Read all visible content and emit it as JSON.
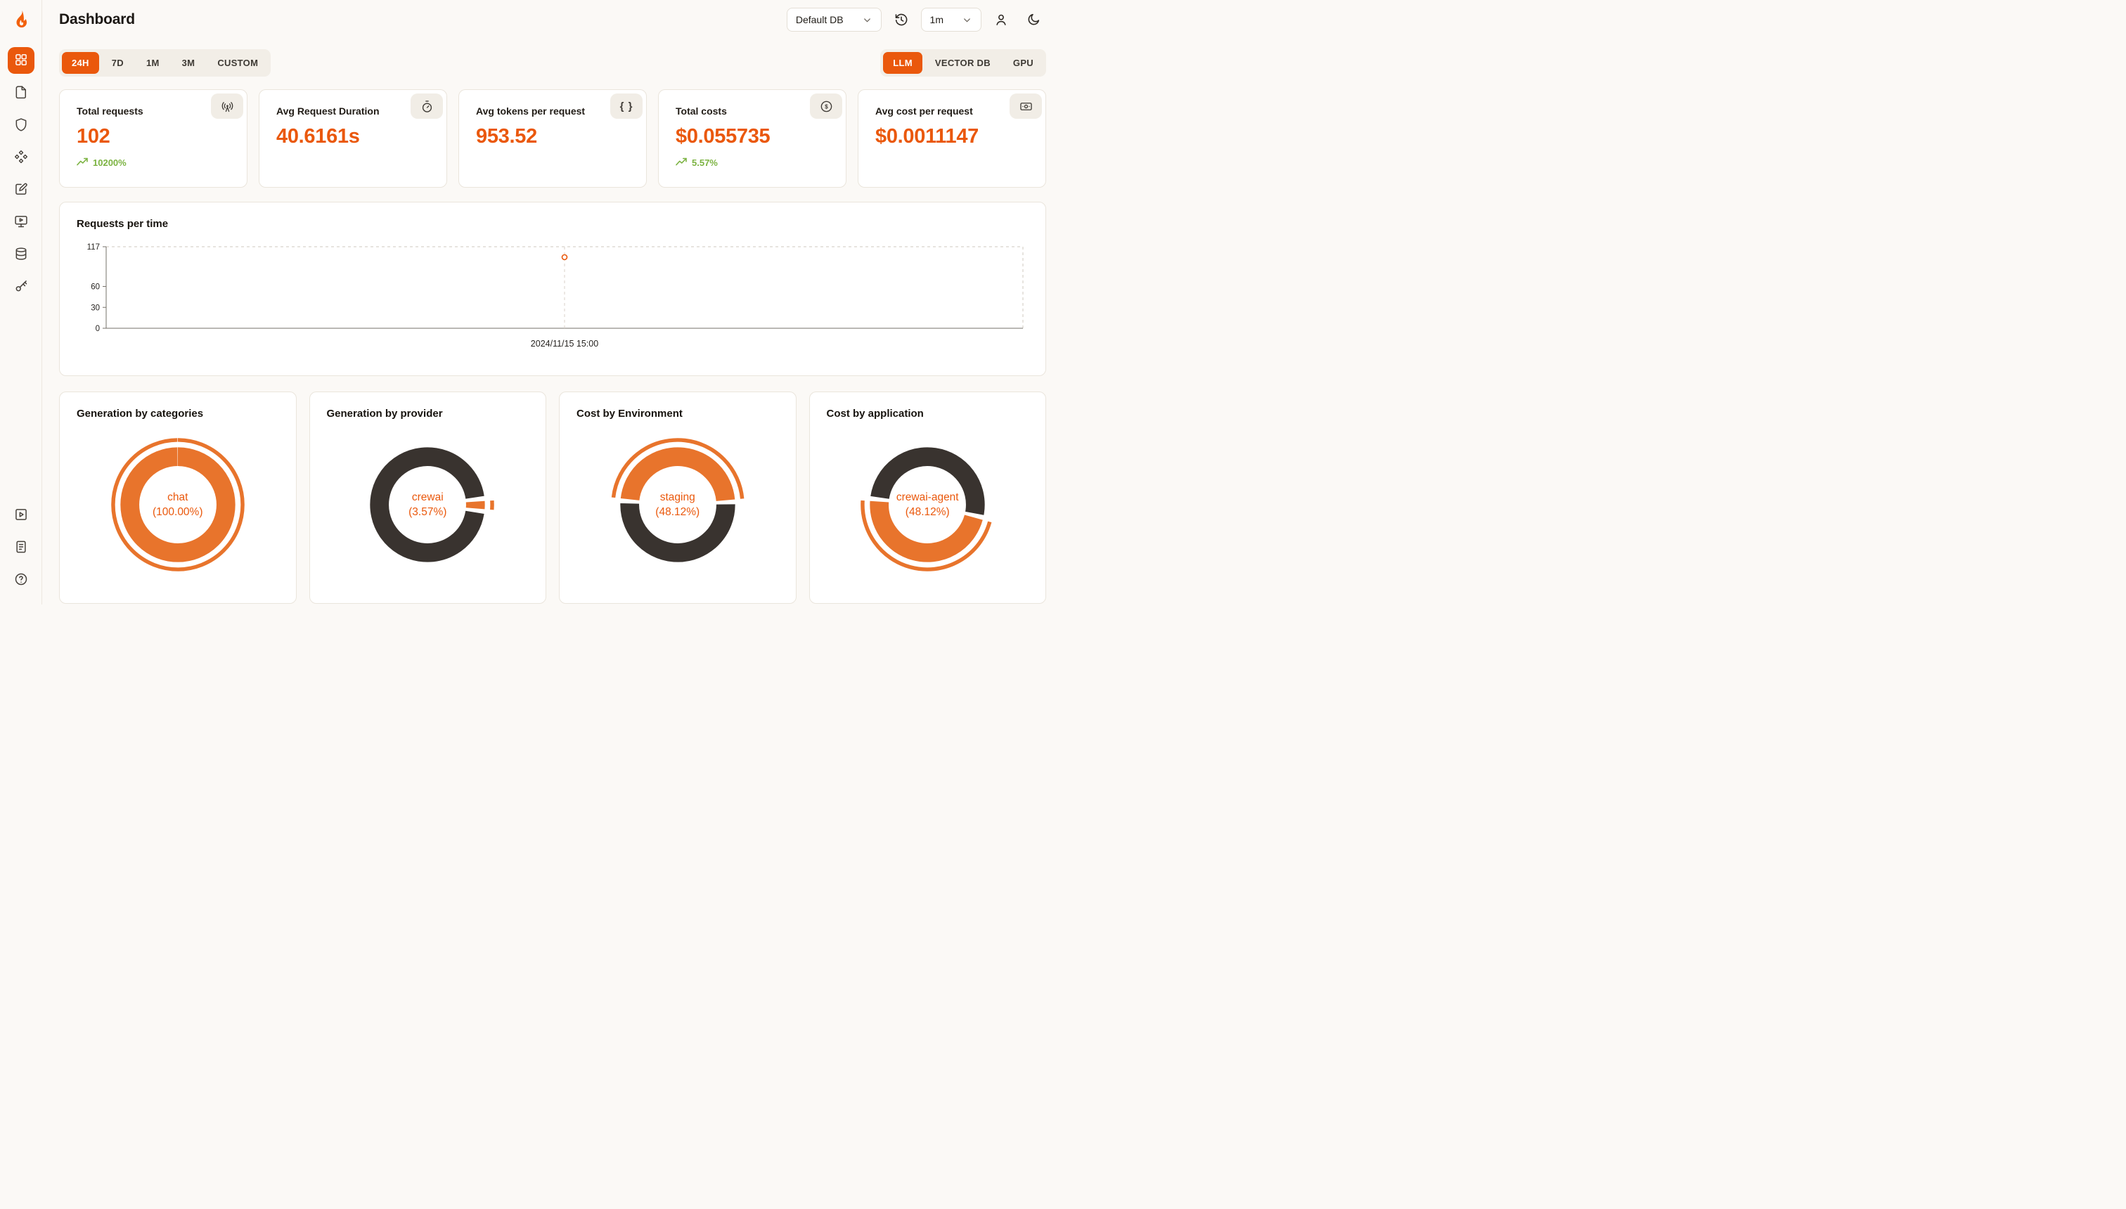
{
  "app": {
    "title": "Dashboard"
  },
  "header": {
    "db_select": "Default DB",
    "interval_select": "1m"
  },
  "time_range_tabs": {
    "h24": "24H",
    "d7": "7D",
    "m1": "1M",
    "m3": "3M",
    "custom": "CUSTOM"
  },
  "source_tabs": {
    "llm": "LLM",
    "vector": "VECTOR DB",
    "gpu": "GPU"
  },
  "stats": {
    "total_requests": {
      "title": "Total requests",
      "value": "102",
      "delta": "10200%"
    },
    "avg_request_duration": {
      "title": "Avg Request Duration",
      "value": "40.6161s"
    },
    "avg_tokens_per_request": {
      "title": "Avg tokens per request",
      "value": "953.52"
    },
    "total_costs": {
      "title": "Total costs",
      "value": "$0.055735",
      "delta": "5.57%"
    },
    "avg_cost_per_request": {
      "title": "Avg cost per request",
      "value": "$0.0011147"
    }
  },
  "icons": {
    "braces": "{ }",
    "dollar": "$"
  },
  "colors": {
    "accent": "#EA580C",
    "positive": "#7CB342",
    "donut_highlight": "#E8742C",
    "donut_rest": "#39332F",
    "background": "#FBF9F6",
    "card_border": "#EAE5DC"
  },
  "chart_data": [
    {
      "type": "line",
      "title": "Requests per time",
      "x": [
        "2024/11/15 15:00"
      ],
      "series": [
        {
          "name": "requests",
          "values": [
            102
          ]
        }
      ],
      "ylim": [
        0,
        117
      ],
      "yticks": [
        0,
        30,
        60,
        117
      ],
      "xlabel": "",
      "ylabel": "",
      "legend": "none",
      "grid": "dashed-plot-border",
      "marker": "open-circle"
    },
    {
      "type": "pie",
      "title": "Generation by categories",
      "labels": [
        "chat"
      ],
      "values": [
        100.0
      ],
      "start_angle_deg": 0,
      "center": {
        "line1": "chat",
        "line2": "(100.00%)"
      }
    },
    {
      "type": "pie",
      "title": "Generation by provider",
      "labels": [
        "crewai",
        "remainder"
      ],
      "values": [
        3.57,
        96.43
      ],
      "start_angle_deg": 84,
      "center": {
        "line1": "crewai",
        "line2": "(3.57%)"
      }
    },
    {
      "type": "pie",
      "title": "Cost by Environment",
      "labels": [
        "staging",
        "remainder"
      ],
      "values": [
        48.12,
        51.88
      ],
      "start_angle_deg": 274,
      "center": {
        "line1": "staging",
        "line2": "(48.12%)"
      }
    },
    {
      "type": "pie",
      "title": "Cost by application",
      "labels": [
        "crewai-agent",
        "remainder"
      ],
      "values": [
        48.12,
        51.88
      ],
      "start_angle_deg": 103,
      "center": {
        "line1": "crewai-agent",
        "line2": "(48.12%)"
      }
    }
  ]
}
